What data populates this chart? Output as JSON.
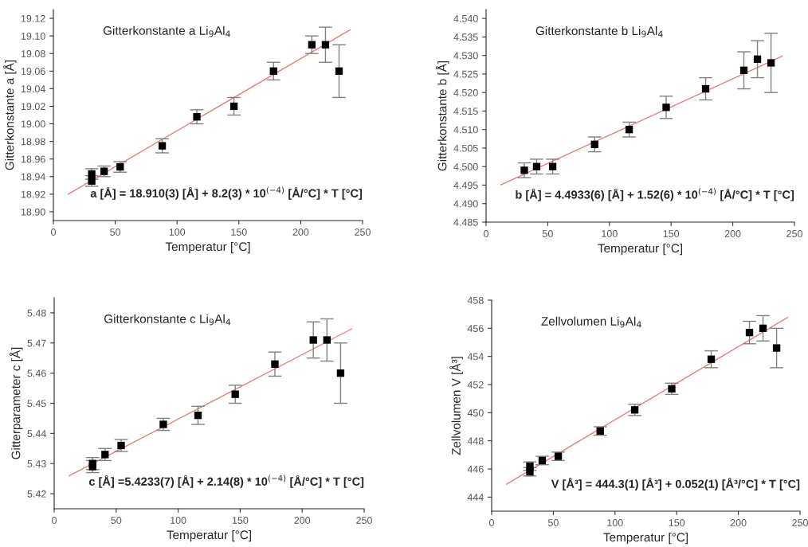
{
  "chart_data": [
    {
      "type": "scatter",
      "title": "Gitterkonstante a Li$_{9}$Al$_{4}$",
      "xlabel": "Temperatur [°C]",
      "ylabel": "Gitterkonstante a [Å]",
      "xlim": [
        0,
        250
      ],
      "xticks": [
        0,
        50,
        100,
        150,
        200,
        250
      ],
      "ylim": [
        18.89,
        19.13
      ],
      "yticks": [
        {
          "value": 18.9,
          "label": "18.90"
        },
        18.92,
        18.94,
        18.96,
        18.98,
        {
          "value": 19.0,
          "label": "19.00"
        },
        19.02,
        19.04,
        19.06,
        19.08,
        {
          "value": 19.1,
          "label": "19.10"
        },
        19.12
      ],
      "grid": false,
      "legend": false,
      "annotations": [
        "a [Å] = 18.910(3) [Å] + 8.2(3) * 10$^{(−4)}$ [Å/°C] * T [°C]"
      ],
      "series": [
        {
          "marker": "square",
          "color": "#000000",
          "x": [
            31,
            31,
            41,
            54,
            88,
            116,
            146,
            178,
            209,
            220,
            231
          ],
          "values": [
            18.943,
            18.935,
            18.946,
            18.951,
            18.975,
            19.008,
            19.02,
            19.06,
            19.09,
            19.09,
            19.06
          ],
          "errors": [
            0.006,
            0.006,
            0.006,
            0.006,
            0.008,
            0.008,
            0.01,
            0.01,
            0.01,
            0.02,
            0.03
          ]
        },
        {
          "type": "line",
          "color": "#e08080",
          "x": [
            12,
            240
          ],
          "values": [
            18.92,
            19.107
          ]
        }
      ]
    },
    {
      "type": "scatter",
      "title": "Gitterkonstante b Li$_{9}$Al$_{4}$",
      "xlabel": "Temperatur [°C]",
      "ylabel": "Gitterkonstante b [Å]",
      "xlim": [
        0,
        250
      ],
      "xticks": [
        0,
        50,
        100,
        150,
        200,
        250
      ],
      "ylim": [
        4.485,
        4.5424
      ],
      "yticks": [
        4.485,
        {
          "value": 4.49,
          "label": "4.490"
        },
        4.495,
        {
          "value": 4.5,
          "label": "4.500"
        },
        4.505,
        {
          "value": 4.51,
          "label": "4.510"
        },
        4.515,
        {
          "value": 4.52,
          "label": "4.520"
        },
        4.525,
        {
          "value": 4.53,
          "label": "4.530"
        },
        4.535,
        {
          "value": 4.54,
          "label": "4.540"
        }
      ],
      "grid": false,
      "legend": false,
      "annotations": [
        "b [Å] = 4.4933(6) [Å] + 1.52(6) * 10$^{(−4)}$ [Å/°C] * T [°C]"
      ],
      "series": [
        {
          "marker": "square",
          "color": "#000000",
          "x": [
            31,
            41,
            54,
            88,
            116,
            146,
            178,
            209,
            220,
            231
          ],
          "values": [
            4.499,
            4.5,
            4.5,
            4.506,
            4.51,
            4.516,
            4.521,
            4.526,
            4.529,
            4.528
          ],
          "errors": [
            0.002,
            0.002,
            0.002,
            0.002,
            0.002,
            0.003,
            0.003,
            0.005,
            0.005,
            0.008
          ]
        },
        {
          "type": "line",
          "color": "#e08080",
          "x": [
            12,
            240
          ],
          "values": [
            4.4951,
            4.5298
          ]
        }
      ]
    },
    {
      "type": "scatter",
      "title": "Gitterkonstante c Li$_{9}$Al$_{4}$",
      "xlabel": "Temperatur [°C]",
      "ylabel": "Gitterparameter c [Å]",
      "xlim": [
        0,
        250
      ],
      "xticks": [
        0,
        50,
        100,
        150,
        200,
        250
      ],
      "ylim": [
        5.415,
        5.485
      ],
      "yticks": [
        {
          "value": 5.42,
          "label": "5.42"
        },
        5.43,
        5.44,
        5.45,
        5.46,
        5.47,
        5.48
      ],
      "grid": false,
      "legend": false,
      "annotations": [
        "c [Å] =5.4233(7) [Å] + 2.14(8) * 10$^{(−4)}$ [Å/°C] * T [°C]"
      ],
      "series": [
        {
          "marker": "square",
          "color": "#000000",
          "x": [
            31,
            31,
            41,
            54,
            88,
            116,
            146,
            178,
            209,
            220,
            231
          ],
          "values": [
            5.43,
            5.429,
            5.433,
            5.436,
            5.443,
            5.446,
            5.453,
            5.463,
            5.471,
            5.471,
            5.46
          ],
          "errors": [
            0.002,
            0.002,
            0.002,
            0.002,
            0.002,
            0.003,
            0.003,
            0.004,
            0.006,
            0.007,
            0.01
          ]
        },
        {
          "type": "line",
          "color": "#e08080",
          "x": [
            12,
            240
          ],
          "values": [
            5.4259,
            5.4747
          ]
        }
      ]
    },
    {
      "type": "scatter",
      "title": "Zellvolumen Li$_{9}$Al$_{4}$",
      "xlabel": "Temperatur [°C]",
      "ylabel": "Zellvolumen V [Å³]",
      "xlim": [
        0,
        250
      ],
      "xticks": [
        0,
        50,
        100,
        150,
        200,
        250
      ],
      "ylim": [
        443,
        458
      ],
      "yticks": [
        444,
        446,
        448,
        450,
        452,
        454,
        456,
        458
      ],
      "grid": false,
      "legend": false,
      "annotations": [
        "V [Å³] = 444.3(1) [Å³] + 0.052(1) [Å³/°C] * T [°C]"
      ],
      "series": [
        {
          "marker": "square",
          "color": "#000000",
          "x": [
            31,
            31,
            41,
            54,
            88,
            116,
            146,
            178,
            209,
            220,
            231
          ],
          "values": [
            446.2,
            445.8,
            446.6,
            446.9,
            448.7,
            450.2,
            451.7,
            453.8,
            455.7,
            456.0,
            454.6
          ],
          "errors": [
            0.3,
            0.3,
            0.3,
            0.3,
            0.3,
            0.4,
            0.4,
            0.6,
            0.8,
            0.9,
            1.4
          ]
        },
        {
          "type": "line",
          "color": "#e08080",
          "x": [
            12,
            240
          ],
          "values": [
            444.92,
            456.78
          ]
        }
      ]
    }
  ]
}
